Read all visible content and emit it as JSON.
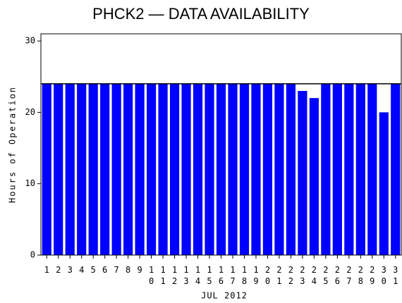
{
  "chart_data": {
    "type": "bar",
    "title": "PHCK2 — DATA AVAILABILITY",
    "x_label": "JUL 2012",
    "y_label": "Hours of Operation",
    "categories": [
      "1",
      "2",
      "3",
      "4",
      "5",
      "6",
      "7",
      "8",
      "9",
      "10",
      "11",
      "12",
      "13",
      "14",
      "15",
      "16",
      "17",
      "18",
      "19",
      "20",
      "21",
      "22",
      "23",
      "24",
      "25",
      "26",
      "27",
      "28",
      "29",
      "30",
      "31"
    ],
    "values": [
      24,
      24,
      24,
      24,
      24,
      24,
      24,
      24,
      24,
      24,
      24,
      24,
      24,
      24,
      24,
      24,
      24,
      24,
      24,
      24,
      24,
      24,
      23,
      22,
      24,
      24,
      24,
      24,
      24,
      20,
      24
    ],
    "color": "#0000ff",
    "reference_line": 24,
    "ylim": [
      0,
      31
    ],
    "yticks": [
      0,
      10,
      20,
      30
    ]
  }
}
